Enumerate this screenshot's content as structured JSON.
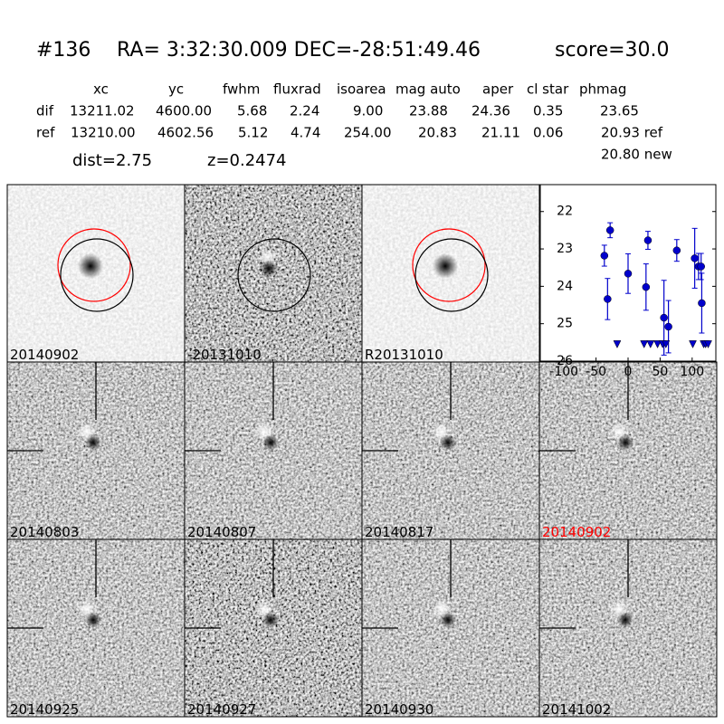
{
  "header": {
    "id": "#136",
    "coords": "RA= 3:32:30.009 DEC=-28:51:49.46",
    "score": "score=30.0"
  },
  "table": {
    "columns": [
      "xc",
      "yc",
      "fwhm",
      "fluxrad",
      "isoarea",
      "mag auto",
      "aper",
      "cl star",
      "phmag"
    ],
    "rows": [
      {
        "label": "dif",
        "cells": [
          "13211.02",
          "4600.00",
          "5.68",
          "2.24",
          "9.00",
          "23.88",
          "24.36",
          "0.35",
          "23.65"
        ]
      },
      {
        "label": "ref",
        "cells": [
          "13210.00",
          "4602.56",
          "5.12",
          "4.74",
          "254.00",
          "20.83",
          "21.11",
          "0.06",
          "20.93 ref"
        ]
      }
    ],
    "extra": "20.80 new"
  },
  "dist": {
    "label": "dist=",
    "value": "2.75"
  },
  "z": "z=0.2474",
  "stamps": [
    {
      "label": "20140902"
    },
    {
      "label": "-20131010"
    },
    {
      "label": "R20131010"
    },
    {
      "label": "20140803"
    },
    {
      "label": "20140807"
    },
    {
      "label": "20140817"
    },
    {
      "label": "20140902",
      "color": "#ff0000"
    },
    {
      "label": "20140925"
    },
    {
      "label": "20140927"
    },
    {
      "label": "20140930"
    },
    {
      "label": "20141002"
    }
  ],
  "chart_data": {
    "type": "errorbar",
    "color": "#0000cc",
    "xlim": [
      -137,
      137
    ],
    "ylim": [
      21.28,
      26
    ],
    "yinvert": true,
    "xticks": [
      -100,
      -50,
      0,
      50,
      100
    ],
    "yticks": [
      22,
      23,
      24,
      25,
      26
    ],
    "points": {
      "x": [
        -37,
        -32,
        -28,
        0,
        28,
        31,
        56,
        63,
        76,
        104,
        110,
        114,
        115
      ],
      "values": [
        23.18,
        24.34,
        22.5,
        23.66,
        24.02,
        22.77,
        24.84,
        25.08,
        23.04,
        23.25,
        23.47,
        23.47,
        24.45
      ],
      "errors": [
        0.28,
        0.55,
        0.2,
        0.53,
        0.62,
        0.24,
        1.0,
        0.7,
        0.29,
        0.8,
        0.35,
        0.35,
        0.8
      ]
    },
    "limits": {
      "x": [
        -17,
        25,
        35,
        46,
        54,
        59,
        101,
        118,
        121,
        125
      ],
      "values": [
        25.55,
        25.55,
        25.55,
        25.55,
        25.55,
        25.55,
        25.55,
        25.55,
        25.55,
        25.55
      ]
    }
  }
}
